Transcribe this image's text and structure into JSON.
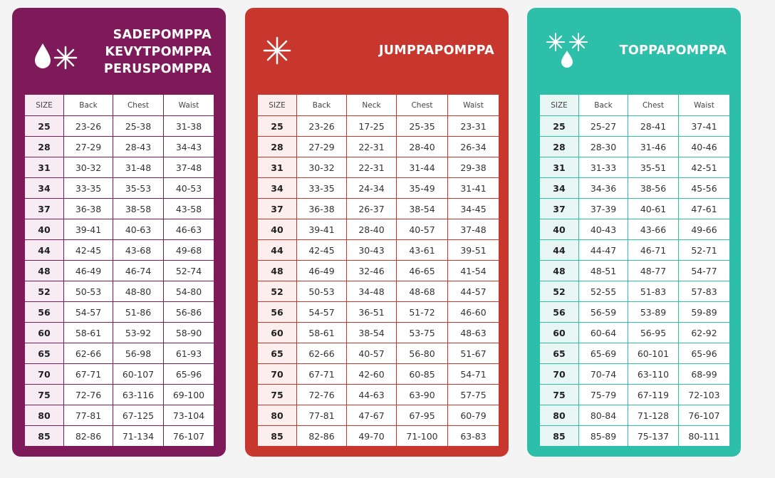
{
  "cards": [
    {
      "titles": [
        "SADEPOMPPA",
        "KEVYTPOMPPA",
        "PERUSPOMPPA"
      ],
      "columns": [
        "SIZE",
        "Back",
        "Chest",
        "Waist"
      ],
      "rows": [
        [
          "25",
          "23-26",
          "25-38",
          "31-38"
        ],
        [
          "28",
          "27-29",
          "28-43",
          "34-43"
        ],
        [
          "31",
          "30-32",
          "31-48",
          "37-48"
        ],
        [
          "34",
          "33-35",
          "35-53",
          "40-53"
        ],
        [
          "37",
          "36-38",
          "38-58",
          "43-58"
        ],
        [
          "40",
          "39-41",
          "40-63",
          "46-63"
        ],
        [
          "44",
          "42-45",
          "43-68",
          "49-68"
        ],
        [
          "48",
          "46-49",
          "46-74",
          "52-74"
        ],
        [
          "52",
          "50-53",
          "48-80",
          "54-80"
        ],
        [
          "56",
          "54-57",
          "51-86",
          "56-86"
        ],
        [
          "60",
          "58-61",
          "53-92",
          "58-90"
        ],
        [
          "65",
          "62-66",
          "56-98",
          "61-93"
        ],
        [
          "70",
          "67-71",
          "60-107",
          "65-96"
        ],
        [
          "75",
          "72-76",
          "63-116",
          "69-100"
        ],
        [
          "80",
          "77-81",
          "67-125",
          "73-104"
        ],
        [
          "85",
          "82-86",
          "71-134",
          "76-107"
        ]
      ]
    },
    {
      "titles": [
        "JUMPPAPOMPPA"
      ],
      "columns": [
        "SIZE",
        "Back",
        "Neck",
        "Chest",
        "Waist"
      ],
      "rows": [
        [
          "25",
          "23-26",
          "17-25",
          "25-35",
          "23-31"
        ],
        [
          "28",
          "27-29",
          "22-31",
          "28-40",
          "26-34"
        ],
        [
          "31",
          "30-32",
          "22-31",
          "31-44",
          "29-38"
        ],
        [
          "34",
          "33-35",
          "24-34",
          "35-49",
          "31-41"
        ],
        [
          "37",
          "36-38",
          "26-37",
          "38-54",
          "34-45"
        ],
        [
          "40",
          "39-41",
          "28-40",
          "40-57",
          "37-48"
        ],
        [
          "44",
          "42-45",
          "30-43",
          "43-61",
          "39-51"
        ],
        [
          "48",
          "46-49",
          "32-46",
          "46-65",
          "41-54"
        ],
        [
          "52",
          "50-53",
          "34-48",
          "48-68",
          "44-57"
        ],
        [
          "56",
          "54-57",
          "36-51",
          "51-72",
          "46-60"
        ],
        [
          "60",
          "58-61",
          "38-54",
          "53-75",
          "48-63"
        ],
        [
          "65",
          "62-66",
          "40-57",
          "56-80",
          "51-67"
        ],
        [
          "70",
          "67-71",
          "42-60",
          "60-85",
          "54-71"
        ],
        [
          "75",
          "72-76",
          "44-63",
          "63-90",
          "57-75"
        ],
        [
          "80",
          "77-81",
          "47-67",
          "67-95",
          "60-79"
        ],
        [
          "85",
          "82-86",
          "49-70",
          "71-100",
          "63-83"
        ]
      ]
    },
    {
      "titles": [
        "TOPPAPOMPPA"
      ],
      "columns": [
        "SIZE",
        "Back",
        "Chest",
        "Waist"
      ],
      "rows": [
        [
          "25",
          "25-27",
          "28-41",
          "37-41"
        ],
        [
          "28",
          "28-30",
          "31-46",
          "40-46"
        ],
        [
          "31",
          "31-33",
          "35-51",
          "42-51"
        ],
        [
          "34",
          "34-36",
          "38-56",
          "45-56"
        ],
        [
          "37",
          "37-39",
          "40-61",
          "47-61"
        ],
        [
          "40",
          "40-43",
          "43-66",
          "49-66"
        ],
        [
          "44",
          "44-47",
          "46-71",
          "52-71"
        ],
        [
          "48",
          "48-51",
          "48-77",
          "54-77"
        ],
        [
          "52",
          "52-55",
          "51-83",
          "57-83"
        ],
        [
          "56",
          "56-59",
          "53-89",
          "59-89"
        ],
        [
          "60",
          "60-64",
          "56-95",
          "62-92"
        ],
        [
          "65",
          "65-69",
          "60-101",
          "65-96"
        ],
        [
          "70",
          "70-74",
          "63-110",
          "68-99"
        ],
        [
          "75",
          "75-79",
          "67-119",
          "72-103"
        ],
        [
          "80",
          "80-84",
          "71-128",
          "76-107"
        ],
        [
          "85",
          "85-89",
          "75-137",
          "80-111"
        ]
      ]
    }
  ]
}
